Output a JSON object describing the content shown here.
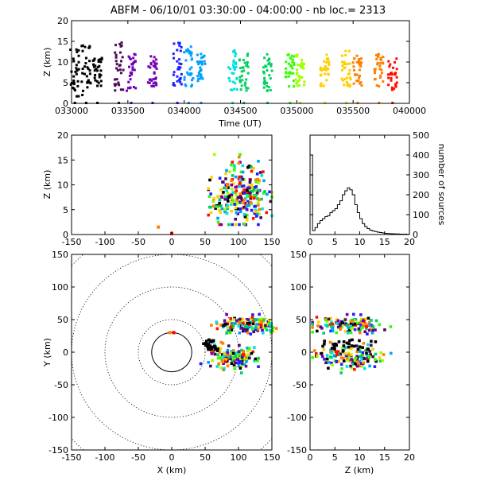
{
  "chart_data": [
    {
      "panel": "time-height",
      "type": "scatter",
      "title": "ABFM - 06/10/01 03:30:00 - 04:00:00 - nb loc.=    2313",
      "xlabel": "Time (UT)",
      "ylabel": "Z (km)",
      "xlim": [
        "033000",
        "040000"
      ],
      "ylim": [
        0,
        20
      ],
      "xticks": [
        "033000",
        "033500",
        "034000",
        "034500",
        "035000",
        "035500",
        "040000"
      ],
      "yticks": [
        0,
        5,
        10,
        15,
        20
      ],
      "color_scale": [
        "#000000",
        "#4a0a5a",
        "#7000b0",
        "#2020ff",
        "#00a0ff",
        "#00e0e0",
        "#00d060",
        "#30ff00",
        "#a0ff00",
        "#ffd000",
        "#ff8000",
        "#ff1000"
      ],
      "time_clusters_min": [
        {
          "t": 0.3,
          "zmin": 1,
          "zmax": 14
        },
        {
          "t": 1.3,
          "zmin": 2,
          "zmax": 15
        },
        {
          "t": 2.3,
          "zmin": 4,
          "zmax": 11
        },
        {
          "t": 4.2,
          "zmin": 3,
          "zmax": 15
        },
        {
          "t": 5.3,
          "zmin": 3,
          "zmax": 12
        },
        {
          "t": 7.2,
          "zmin": 4,
          "zmax": 12
        },
        {
          "t": 9.4,
          "zmin": 4,
          "zmax": 15
        },
        {
          "t": 10.4,
          "zmin": 4,
          "zmax": 14
        },
        {
          "t": 11.5,
          "zmin": 5,
          "zmax": 13
        },
        {
          "t": 14.3,
          "zmin": 3,
          "zmax": 13
        },
        {
          "t": 15.3,
          "zmin": 3,
          "zmax": 12
        },
        {
          "t": 17.4,
          "zmin": 3,
          "zmax": 12
        },
        {
          "t": 19.4,
          "zmin": 4,
          "zmax": 12
        },
        {
          "t": 20.3,
          "zmin": 4,
          "zmax": 12
        },
        {
          "t": 22.5,
          "zmin": 4,
          "zmax": 12
        },
        {
          "t": 24.4,
          "zmin": 4,
          "zmax": 13
        },
        {
          "t": 25.4,
          "zmin": 4,
          "zmax": 12
        },
        {
          "t": 27.3,
          "zmin": 4,
          "zmax": 12
        },
        {
          "t": 28.5,
          "zmin": 3,
          "zmax": 11
        }
      ]
    },
    {
      "panel": "x-height",
      "type": "scatter",
      "xlim": [
        -150,
        150
      ],
      "ylim": [
        0,
        20
      ],
      "xticks": [
        -150,
        -100,
        -50,
        0,
        50,
        100,
        150
      ],
      "yticks": [
        0,
        5,
        10,
        15,
        20
      ],
      "ylabel": "Z (km)",
      "source_cloud": {
        "x_range": [
          55,
          150
        ],
        "z_range": [
          2,
          17
        ],
        "center_x": 100,
        "center_z": 8
      }
    },
    {
      "panel": "altitude-histogram",
      "type": "line",
      "xlim": [
        0,
        20
      ],
      "ylim": [
        0,
        500
      ],
      "xticks": [
        0,
        5,
        10,
        15,
        20
      ],
      "yticks": [
        0,
        100,
        200,
        300,
        400,
        500
      ],
      "ylabel": "number of sources",
      "x": [
        0,
        0.5,
        1,
        1.5,
        2,
        2.5,
        3,
        3.5,
        4,
        4.5,
        5,
        5.5,
        6,
        6.5,
        7,
        7.5,
        8,
        8.5,
        9,
        9.5,
        10,
        10.5,
        11,
        11.5,
        12,
        12.5,
        13,
        13.5,
        14,
        14.5,
        15,
        15.5,
        16,
        16.5,
        17,
        17.5,
        18,
        18.5,
        19,
        19.5
      ],
      "values": [
        400,
        20,
        35,
        55,
        70,
        80,
        90,
        95,
        110,
        120,
        130,
        150,
        170,
        200,
        220,
        235,
        225,
        200,
        150,
        110,
        80,
        55,
        40,
        30,
        22,
        18,
        15,
        12,
        10,
        8,
        6,
        5,
        4,
        4,
        3,
        3,
        2,
        2,
        2,
        1
      ]
    },
    {
      "panel": "plan-view",
      "type": "scatter",
      "xlabel": "X (km)",
      "ylabel": "Y (km)",
      "xlim": [
        -150,
        150
      ],
      "ylim": [
        -150,
        150
      ],
      "xticks": [
        -150,
        -100,
        -50,
        0,
        50,
        100,
        150
      ],
      "yticks": [
        -150,
        -100,
        -50,
        0,
        50,
        100,
        150
      ],
      "range_rings_km": [
        30,
        50,
        100,
        150,
        200
      ],
      "clusters": [
        {
          "cx": 112,
          "cy": 42,
          "sx": 22,
          "sy": 6
        },
        {
          "cx": 90,
          "cy": -7,
          "sx": 18,
          "sy": 9
        },
        {
          "cx": 58,
          "cy": 10,
          "sx": 6,
          "sy": 4
        }
      ]
    },
    {
      "panel": "z-y-view",
      "type": "scatter",
      "xlabel": "Z (km)",
      "xlim": [
        0,
        20
      ],
      "ylim": [
        -150,
        150
      ],
      "xticks": [
        0,
        5,
        10,
        15,
        20
      ],
      "yticks": [
        -150,
        -100,
        -50,
        0,
        50,
        100,
        150
      ]
    }
  ]
}
